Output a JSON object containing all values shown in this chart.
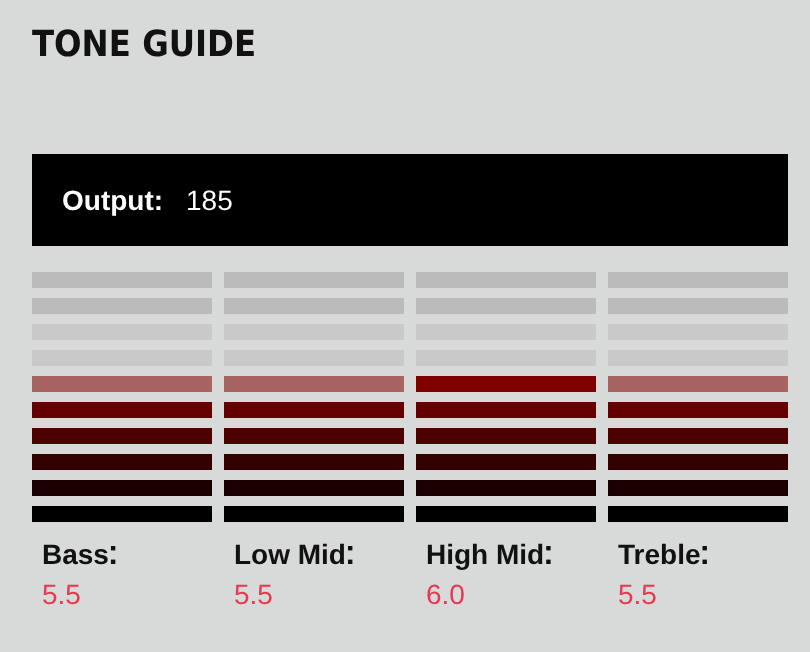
{
  "chart_data": {
    "type": "other",
    "title": "TONE GUIDE",
    "annotations": [
      "Output:",
      "185"
    ],
    "categories": [
      "Bass",
      "Low Mid",
      "High Mid",
      "Treble"
    ],
    "values": [
      5.5,
      5.5,
      6.0,
      5.5
    ],
    "value_labels": [
      "5.5",
      "5.5",
      "6.0",
      "5.5"
    ],
    "color": "#800000"
  }
}
